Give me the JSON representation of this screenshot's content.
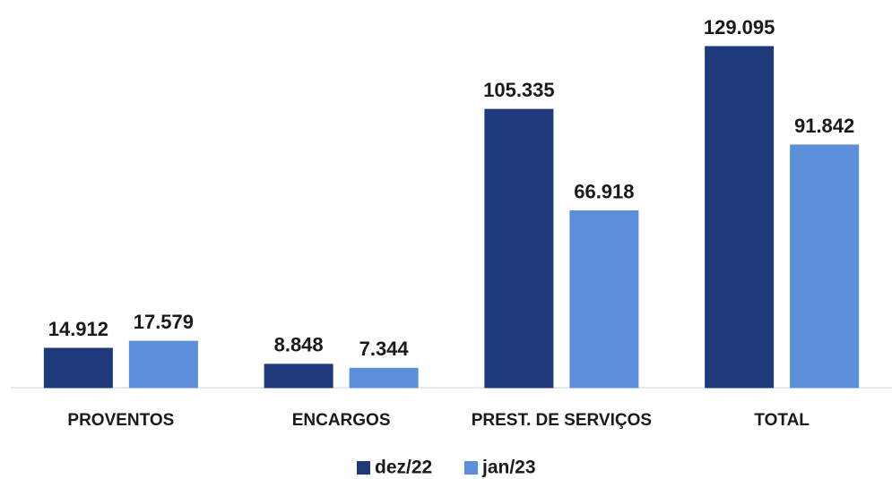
{
  "chart_data": {
    "type": "bar",
    "categories": [
      "PROVENTOS",
      "ENCARGOS",
      "PREST. DE SERVIÇOS",
      "TOTAL"
    ],
    "series": [
      {
        "name": "dez/22",
        "color": "#1f3a7a",
        "values": [
          14912,
          8848,
          105335,
          129095
        ],
        "value_labels": [
          "14.912",
          "8.848",
          "105.335",
          "129.095"
        ]
      },
      {
        "name": "jan/23",
        "color": "#5b8fd9",
        "values": [
          17579,
          7344,
          66918,
          91842
        ],
        "value_labels": [
          "17.579",
          "7.344",
          "66.918",
          "91.842"
        ]
      }
    ],
    "legend": "bottom"
  }
}
